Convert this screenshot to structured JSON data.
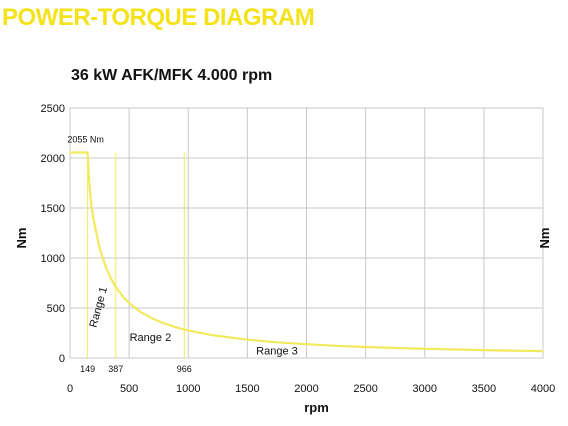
{
  "page": {
    "heading": "POWER-TORQUE DIAGRAM"
  },
  "chart_data": {
    "type": "line",
    "title": "36 kW AFK/MFK 4.000 rpm",
    "xlabel": "rpm",
    "ylabel": "Nm",
    "ylabel_right": "Nm",
    "xlim": [
      0,
      4000
    ],
    "ylim": [
      0,
      2500
    ],
    "x_ticks": [
      0,
      500,
      1000,
      1500,
      2000,
      2500,
      3000,
      3500,
      4000
    ],
    "y_ticks": [
      0,
      500,
      1000,
      1500,
      2000,
      2500
    ],
    "grid": true,
    "line_color": "#f2ea5c",
    "series": [
      {
        "points": [
          [
            0,
            2055
          ],
          [
            149,
            2055
          ],
          [
            160,
            1800
          ],
          [
            180,
            1530
          ],
          [
            200,
            1375
          ],
          [
            250,
            1100
          ],
          [
            300,
            917
          ],
          [
            350,
            786
          ],
          [
            387,
            711
          ],
          [
            450,
            611
          ],
          [
            500,
            550
          ],
          [
            600,
            458
          ],
          [
            700,
            393
          ],
          [
            800,
            344
          ],
          [
            900,
            306
          ],
          [
            966,
            285
          ],
          [
            1000,
            275
          ],
          [
            1200,
            229
          ],
          [
            1500,
            183
          ],
          [
            1750,
            157
          ],
          [
            2000,
            138
          ],
          [
            2250,
            122
          ],
          [
            2500,
            110
          ],
          [
            2750,
            100
          ],
          [
            3000,
            92
          ],
          [
            3250,
            85
          ],
          [
            3500,
            79
          ],
          [
            3750,
            73
          ],
          [
            4000,
            69
          ]
        ]
      }
    ],
    "annotations": {
      "peak_label": {
        "text": "2055 Nm",
        "x": 149,
        "y": 2055
      },
      "range_markers": [
        {
          "label": "149",
          "x": 149
        },
        {
          "label": "387",
          "x": 387
        },
        {
          "label": "966",
          "x": 966
        }
      ],
      "ranges": [
        {
          "label": "Range 1",
          "x": 268,
          "y": 500,
          "rotated": true
        },
        {
          "label": "Range 2",
          "x": 680,
          "y": 170,
          "rotated": false
        },
        {
          "label": "Range 3",
          "x": 1750,
          "y": 35,
          "rotated": false
        }
      ]
    }
  }
}
